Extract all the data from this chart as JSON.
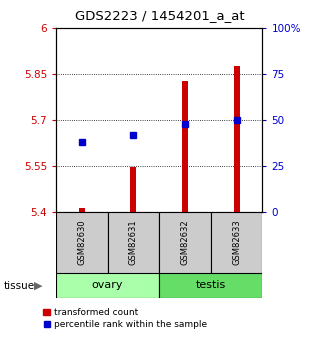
{
  "title": "GDS2223 / 1454201_a_at",
  "samples": [
    "GSM82630",
    "GSM82631",
    "GSM82632",
    "GSM82633"
  ],
  "tissue_groups": [
    {
      "label": "ovary",
      "samples": [
        0,
        1
      ],
      "color": "#aaffaa"
    },
    {
      "label": "testis",
      "samples": [
        2,
        3
      ],
      "color": "#66dd66"
    }
  ],
  "red_values": [
    5.413,
    5.548,
    5.825,
    5.875
  ],
  "blue_values_pct": [
    38,
    42,
    48,
    50
  ],
  "ylim_left": [
    5.4,
    6.0
  ],
  "ylim_right": [
    0,
    100
  ],
  "yticks_left": [
    5.4,
    5.55,
    5.7,
    5.85,
    6.0
  ],
  "ytick_labels_left": [
    "5.4",
    "5.55",
    "5.7",
    "5.85",
    "6"
  ],
  "yticks_right": [
    0,
    25,
    50,
    75,
    100
  ],
  "ytick_labels_right": [
    "0",
    "25",
    "50",
    "75",
    "100%"
  ],
  "bar_base": 5.4,
  "bar_width": 0.12,
  "bar_color": "#cc0000",
  "dot_color": "#0000cc",
  "dot_size": 4,
  "grid_color": "#000000",
  "bg_color": "#ffffff",
  "sample_box_color": "#cccccc",
  "legend_items": [
    "transformed count",
    "percentile rank within the sample"
  ],
  "tissue_label": "tissue"
}
